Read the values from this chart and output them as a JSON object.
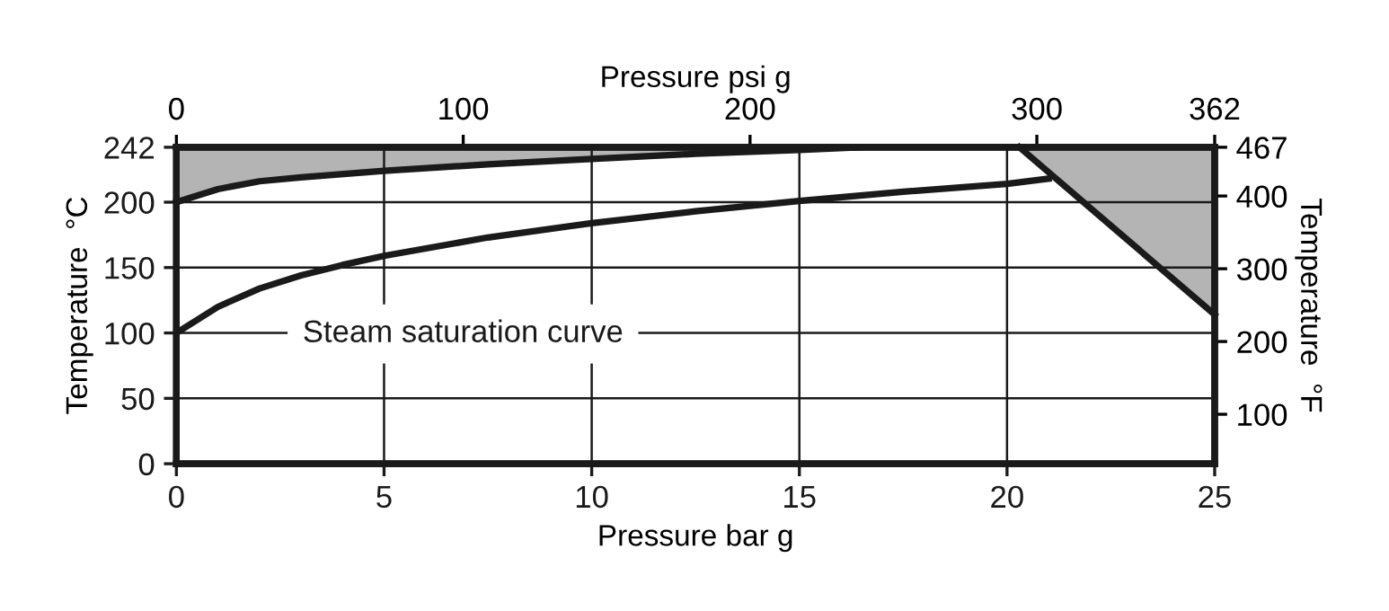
{
  "chart_data": {
    "type": "line",
    "xlabel": "Pressure bar g",
    "x2label": "Pressure psi g",
    "ylabel": "Temperature  °C",
    "y2label": "Temperature  °F",
    "xlim": [
      0,
      25
    ],
    "xticks": [
      0,
      5,
      10,
      15,
      20,
      25
    ],
    "x2lim": [
      0,
      362
    ],
    "x2ticks": [
      0,
      100,
      200,
      300,
      362
    ],
    "ylim": [
      0,
      242
    ],
    "yticks": [
      0,
      50,
      100,
      150,
      200,
      242
    ],
    "y2lim": [
      32,
      467
    ],
    "y2ticks": [
      100,
      200,
      300,
      400,
      467
    ],
    "grid": true,
    "line_style": "solid",
    "marker": "none",
    "series": [
      {
        "color": "#1a1a1a",
        "x": [
          0,
          1,
          2,
          3,
          5,
          7.5,
          10,
          12.5,
          15,
          16.5
        ],
        "values": [
          200,
          210,
          216,
          219,
          224,
          229,
          233,
          237,
          240,
          242
        ],
        "lower": [
          200,
          210,
          216,
          219,
          224,
          229,
          233,
          237,
          240,
          242
        ],
        "upper": [
          242,
          242,
          242,
          242,
          242,
          242,
          242,
          242,
          242,
          242
        ]
      },
      {
        "color": "#1a1a1a",
        "x": [
          0,
          1,
          2,
          3,
          4,
          5,
          7.5,
          10,
          12.5,
          15,
          17.5,
          20,
          21
        ],
        "values": [
          100,
          120,
          134,
          144,
          152,
          159,
          173,
          184,
          193,
          201,
          208,
          214,
          218
        ]
      },
      {
        "color": "#1a1a1a",
        "x": [
          20.3,
          25
        ],
        "values": [
          242,
          114
        ],
        "lower": [
          242,
          114
        ],
        "upper": [
          242,
          242
        ]
      }
    ],
    "annotations": [
      "Steam saturation curve"
    ]
  }
}
